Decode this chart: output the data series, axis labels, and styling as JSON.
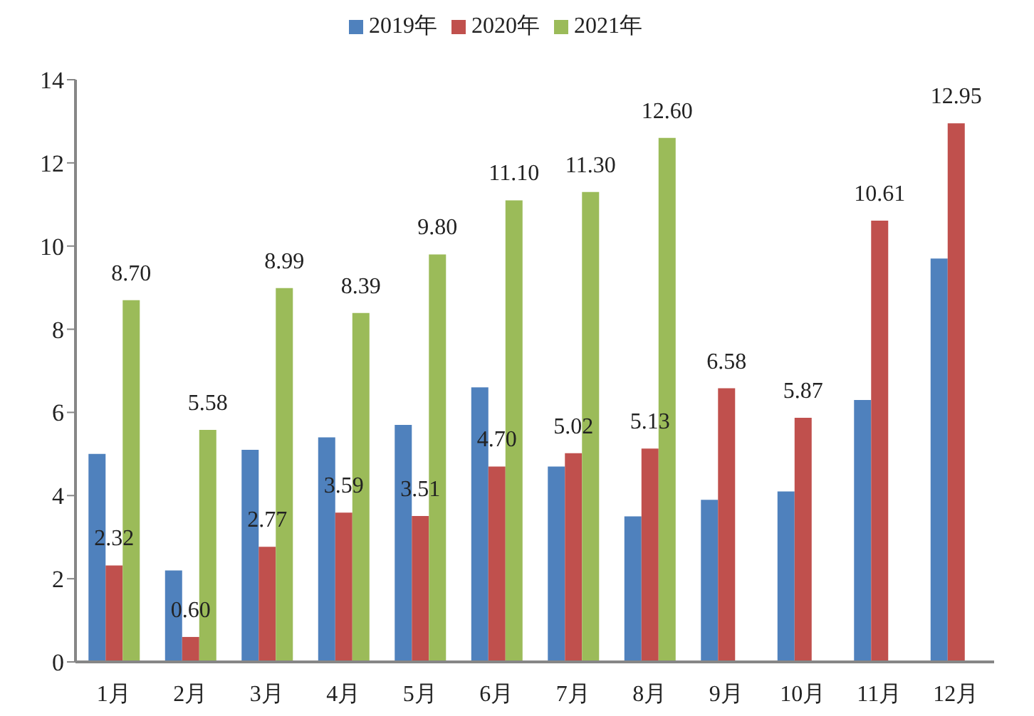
{
  "chart_data": {
    "type": "bar",
    "categories": [
      "1月",
      "2月",
      "3月",
      "4月",
      "5月",
      "6月",
      "7月",
      "8月",
      "9月",
      "10月",
      "11月",
      "12月"
    ],
    "series": [
      {
        "name": "2019年",
        "color": "#4f81bd",
        "values": [
          5.0,
          2.2,
          5.1,
          5.4,
          5.7,
          6.6,
          4.7,
          3.5,
          3.9,
          4.1,
          6.3,
          9.7
        ]
      },
      {
        "name": "2020年",
        "color": "#c0504d",
        "values": [
          2.32,
          0.6,
          2.77,
          3.59,
          3.51,
          4.7,
          5.02,
          5.13,
          6.58,
          5.87,
          10.61,
          12.95
        ],
        "value_labels": [
          "2.32",
          "0.60",
          "2.77",
          "3.59",
          "3.51",
          "4.70",
          "5.02",
          "5.13",
          "6.58",
          "5.87",
          "10.61",
          "12.95"
        ]
      },
      {
        "name": "2021年",
        "color": "#9bbb59",
        "values": [
          8.7,
          5.58,
          8.99,
          8.39,
          9.8,
          11.1,
          11.3,
          12.6,
          null,
          null,
          null,
          null
        ],
        "value_labels": [
          "8.70",
          "5.58",
          "8.99",
          "8.39",
          "9.80",
          "11.10",
          "11.30",
          "12.60",
          null,
          null,
          null,
          null
        ]
      }
    ],
    "ylim": [
      0,
      14
    ],
    "yticks": [
      0,
      2,
      4,
      6,
      8,
      10,
      12,
      14
    ],
    "legend": "top",
    "grid": false
  }
}
